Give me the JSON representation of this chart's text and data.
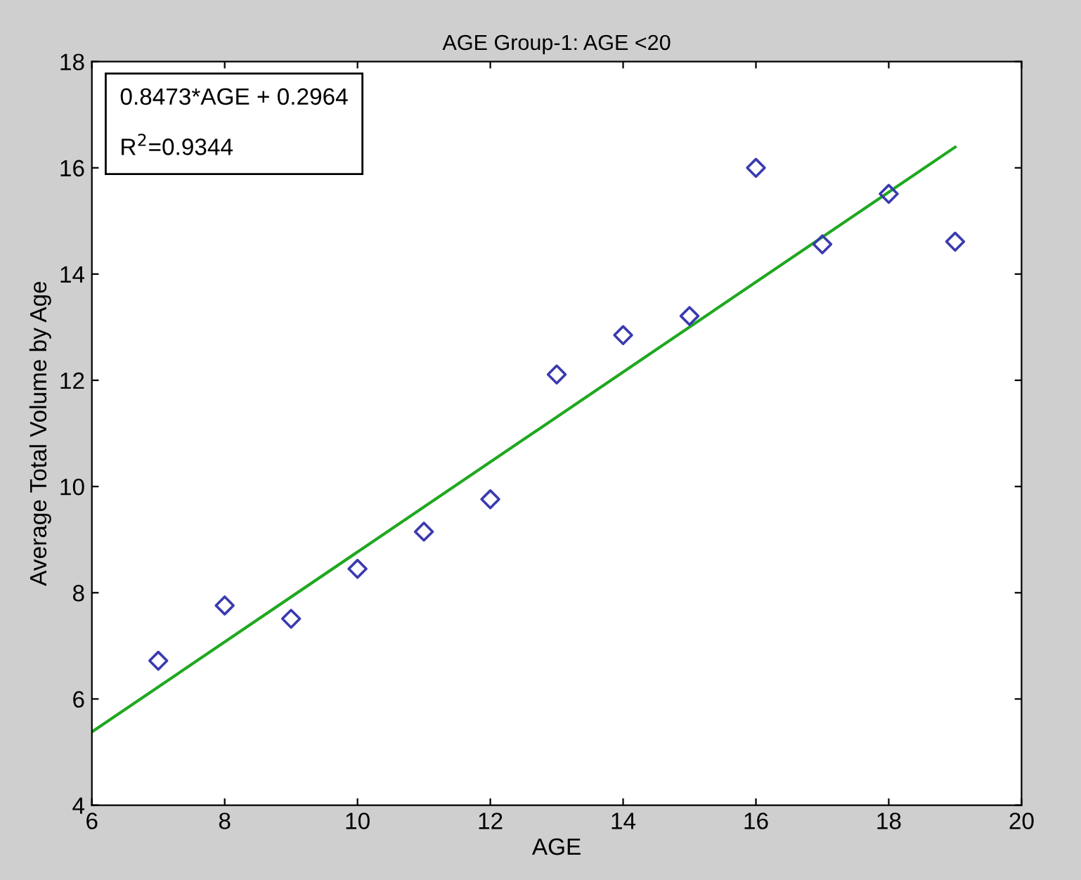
{
  "chart_data": {
    "type": "scatter",
    "title": "AGE Group-1: AGE <20",
    "xlabel": "AGE",
    "ylabel": "Average Total Volume by Age",
    "xlim": [
      6,
      20
    ],
    "xticks": [
      6,
      8,
      10,
      12,
      14,
      16,
      18,
      20
    ],
    "ylim": [
      4,
      18
    ],
    "yticks": [
      4,
      6,
      8,
      10,
      12,
      14,
      16,
      18
    ],
    "grid": false,
    "legend": false,
    "annotations": [
      "0.8473*AGE + 0.2964",
      "R$^{2}$=0.9344"
    ],
    "series": [
      {
        "color": "#3a3ab0",
        "marker": "diamond",
        "x": [
          7,
          8,
          9,
          10,
          11,
          12,
          13,
          14,
          15,
          16,
          17,
          18,
          19
        ],
        "values": [
          6.72,
          7.76,
          7.51,
          8.45,
          9.15,
          9.76,
          12.11,
          12.85,
          13.21,
          16.0,
          14.56,
          15.51,
          14.61
        ]
      },
      {
        "type": "line",
        "color": "#1fa81f",
        "marker": "none",
        "line_style": "solid",
        "x": [
          6,
          19
        ],
        "values": [
          5.38,
          16.39
        ]
      }
    ]
  }
}
